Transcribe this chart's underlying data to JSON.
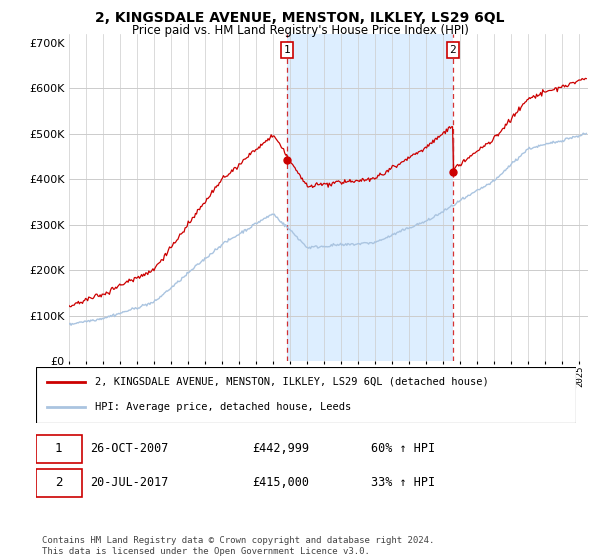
{
  "title": "2, KINGSDALE AVENUE, MENSTON, ILKLEY, LS29 6QL",
  "subtitle": "Price paid vs. HM Land Registry's House Price Index (HPI)",
  "legend_line1": "2, KINGSDALE AVENUE, MENSTON, ILKLEY, LS29 6QL (detached house)",
  "legend_line2": "HPI: Average price, detached house, Leeds",
  "footnote": "Contains HM Land Registry data © Crown copyright and database right 2024.\nThis data is licensed under the Open Government Licence v3.0.",
  "sale1_year": 2007.82,
  "sale1_price": 442999,
  "sale2_year": 2017.55,
  "sale2_price": 415000,
  "hpi_color": "#aac4e0",
  "sales_color": "#cc0000",
  "sale_marker_color": "#cc0000",
  "dashed_line_color": "#cc0000",
  "highlight_color": "#ddeeff",
  "background_color": "#ffffff",
  "ylim": [
    0,
    720000
  ],
  "xlim_start": 1995,
  "xlim_end": 2025.5,
  "row1_label": "1",
  "row1_date": "26-OCT-2007",
  "row1_price": "£442,999",
  "row1_pct": "60% ↑ HPI",
  "row2_label": "2",
  "row2_date": "20-JUL-2017",
  "row2_price": "£415,000",
  "row2_pct": "33% ↑ HPI"
}
